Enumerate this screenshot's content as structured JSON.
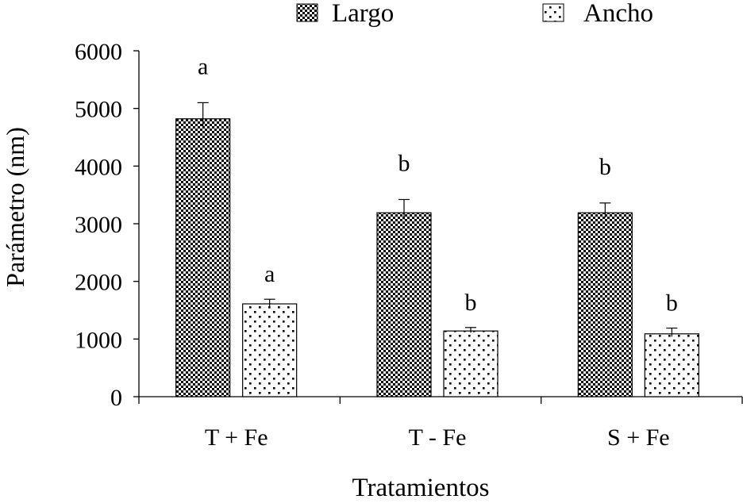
{
  "chart_data": {
    "type": "bar",
    "title": "",
    "xlabel": "Tratamientos",
    "ylabel": "Parámetro (nm)",
    "categories": [
      "T + Fe",
      "T - Fe",
      "S + Fe"
    ],
    "ylim": [
      0,
      6000
    ],
    "yticks": [
      0,
      1000,
      2000,
      3000,
      4000,
      5000,
      6000
    ],
    "grid": false,
    "legend_position": "top",
    "series": [
      {
        "name": "Largo",
        "pattern": "checkerboard",
        "values": [
          4820,
          3190,
          3190
        ],
        "errors": [
          280,
          230,
          170
        ],
        "letters": [
          "a",
          "b",
          "b"
        ]
      },
      {
        "name": "Ancho",
        "pattern": "dots",
        "values": [
          1610,
          1140,
          1090
        ],
        "errors": [
          80,
          60,
          100
        ],
        "letters": [
          "a",
          "b",
          "b"
        ]
      }
    ],
    "colors": {
      "ink": "#000000",
      "fill": "#ffffff"
    }
  }
}
